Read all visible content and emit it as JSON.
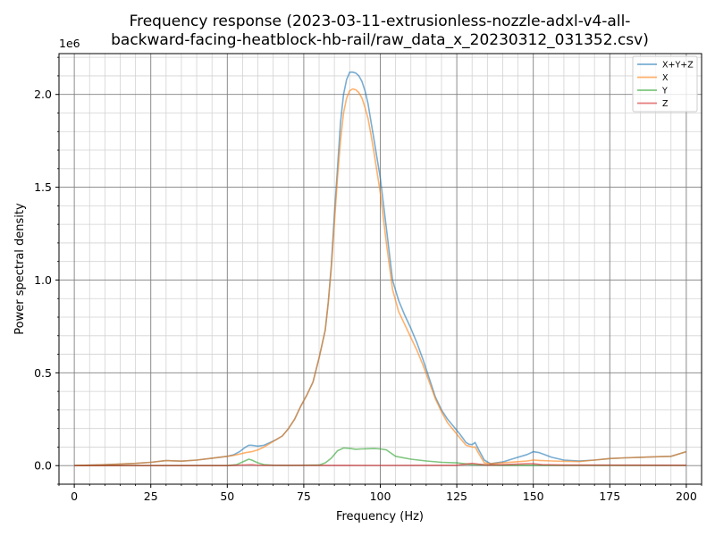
{
  "chart_data": {
    "type": "line",
    "title_line1": "Frequency response (2023-03-11-extrusionless-nozzle-adxl-v4-all-",
    "title_line2": "backward-facing-heatblock-hb-rail/raw_data_x_20230312_031352.csv)",
    "xlabel": "Frequency (Hz)",
    "ylabel": "Power spectral density",
    "y_scale_label": "1e6",
    "xlim": [
      -5,
      205
    ],
    "ylim": [
      -0.1,
      2.22
    ],
    "x_ticks": [
      0,
      25,
      50,
      75,
      100,
      125,
      150,
      175,
      200
    ],
    "x_tick_labels": [
      "0",
      "25",
      "50",
      "75",
      "100",
      "125",
      "150",
      "175",
      "200"
    ],
    "y_ticks": [
      0,
      0.5,
      1.0,
      1.5,
      2.0
    ],
    "y_tick_labels": [
      "0.0",
      "0.5",
      "1.0",
      "1.5",
      "2.0"
    ],
    "grid": "major and minor",
    "legend_position": "top-right",
    "series": [
      {
        "name": "X+Y+Z",
        "color": "#1f77b4",
        "x": [
          0,
          10,
          20,
          25,
          30,
          35,
          40,
          45,
          50,
          52,
          54,
          56,
          57,
          58,
          60,
          62,
          64,
          66,
          68,
          70,
          72,
          74,
          76,
          78,
          80,
          82,
          83,
          84,
          85,
          86,
          87,
          88,
          89,
          90,
          91,
          92,
          93,
          94,
          95,
          96,
          97,
          98,
          100,
          102,
          104,
          106,
          108,
          110,
          112,
          114,
          116,
          118,
          120,
          122,
          124,
          126,
          128,
          129,
          130,
          131,
          132,
          134,
          136,
          140,
          144,
          148,
          150,
          152,
          156,
          160,
          165,
          170,
          175,
          180,
          185,
          190,
          195,
          200
        ],
        "y": [
          0.0,
          0.005,
          0.012,
          0.018,
          0.027,
          0.024,
          0.03,
          0.04,
          0.05,
          0.058,
          0.075,
          0.1,
          0.11,
          0.11,
          0.105,
          0.11,
          0.125,
          0.14,
          0.16,
          0.2,
          0.25,
          0.32,
          0.38,
          0.45,
          0.58,
          0.73,
          0.88,
          1.08,
          1.35,
          1.6,
          1.85,
          2.0,
          2.08,
          2.12,
          2.12,
          2.115,
          2.1,
          2.07,
          2.02,
          1.95,
          1.85,
          1.75,
          1.55,
          1.28,
          1.0,
          0.89,
          0.81,
          0.74,
          0.66,
          0.57,
          0.47,
          0.37,
          0.3,
          0.25,
          0.21,
          0.17,
          0.125,
          0.115,
          0.113,
          0.125,
          0.09,
          0.03,
          0.01,
          0.02,
          0.04,
          0.06,
          0.075,
          0.07,
          0.045,
          0.03,
          0.025,
          0.03,
          0.038,
          0.042,
          0.045,
          0.048,
          0.05,
          0.075
        ]
      },
      {
        "name": "X",
        "color": "#ff7f0e",
        "x": [
          0,
          10,
          20,
          25,
          30,
          35,
          40,
          45,
          50,
          52,
          54,
          56,
          58,
          60,
          62,
          64,
          66,
          68,
          70,
          72,
          74,
          76,
          78,
          80,
          82,
          83,
          84,
          85,
          86,
          87,
          88,
          89,
          90,
          91,
          92,
          93,
          94,
          95,
          96,
          97,
          98,
          100,
          102,
          104,
          106,
          108,
          110,
          112,
          114,
          116,
          118,
          120,
          122,
          124,
          126,
          128,
          130,
          131,
          132,
          134,
          136,
          140,
          144,
          148,
          150,
          152,
          156,
          160,
          165,
          170,
          175,
          180,
          185,
          190,
          195,
          200
        ],
        "y": [
          0.0,
          0.005,
          0.012,
          0.018,
          0.027,
          0.024,
          0.03,
          0.04,
          0.05,
          0.055,
          0.062,
          0.07,
          0.075,
          0.085,
          0.1,
          0.12,
          0.14,
          0.16,
          0.2,
          0.25,
          0.32,
          0.38,
          0.45,
          0.58,
          0.73,
          0.88,
          1.06,
          1.3,
          1.55,
          1.75,
          1.9,
          1.98,
          2.02,
          2.03,
          2.025,
          2.01,
          1.98,
          1.93,
          1.87,
          1.78,
          1.68,
          1.47,
          1.2,
          0.95,
          0.83,
          0.76,
          0.69,
          0.62,
          0.54,
          0.45,
          0.36,
          0.29,
          0.23,
          0.19,
          0.15,
          0.11,
          0.1,
          0.1,
          0.07,
          0.015,
          0.01,
          0.015,
          0.02,
          0.025,
          0.03,
          0.028,
          0.025,
          0.023,
          0.022,
          0.03,
          0.038,
          0.042,
          0.045,
          0.048,
          0.05,
          0.075
        ]
      },
      {
        "name": "Y",
        "color": "#2ca02c",
        "x": [
          0,
          50,
          53,
          55,
          57,
          58,
          60,
          62,
          65,
          70,
          80,
          82,
          84,
          86,
          88,
          90,
          92,
          94,
          96,
          98,
          100,
          102,
          105,
          110,
          115,
          120,
          125,
          130,
          135,
          140,
          150,
          160,
          200
        ],
        "y": [
          0.0,
          0.0,
          0.005,
          0.02,
          0.035,
          0.03,
          0.015,
          0.005,
          0.002,
          0.001,
          0.003,
          0.015,
          0.04,
          0.08,
          0.095,
          0.093,
          0.088,
          0.09,
          0.091,
          0.092,
          0.09,
          0.085,
          0.05,
          0.035,
          0.025,
          0.018,
          0.015,
          0.005,
          0.003,
          0.002,
          0.002,
          0.001,
          0.001
        ]
      },
      {
        "name": "Z",
        "color": "#d62728",
        "x": [
          0,
          50,
          55,
          58,
          60,
          100,
          125,
          128,
          130,
          132,
          135,
          140,
          148,
          150,
          153,
          160,
          200
        ],
        "y": [
          0.0,
          0.0,
          0.003,
          0.005,
          0.002,
          0.001,
          0.002,
          0.008,
          0.012,
          0.008,
          0.003,
          0.005,
          0.01,
          0.01,
          0.005,
          0.003,
          0.002
        ]
      }
    ]
  }
}
